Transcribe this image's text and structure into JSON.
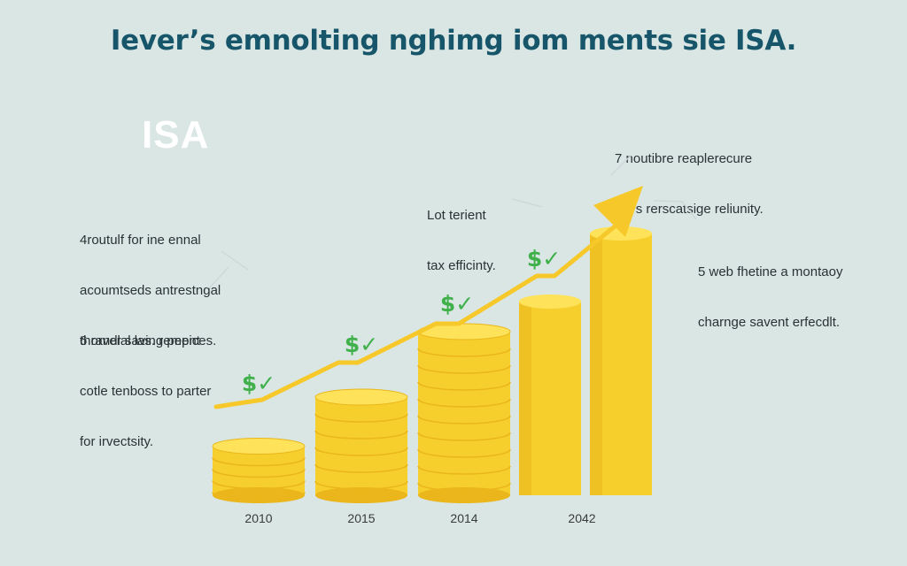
{
  "title": "Iever’s emnolting nghimg iom ments sie ISA.",
  "logo_text": "ISA",
  "annotations": [
    {
      "lines": [
        "4routulf for ine ennal",
        "acoumtseds antrestngal",
        "thorver saving pepices."
      ]
    },
    {
      "lines": [
        "6 randlal las. rement",
        "cotle tenboss to parter",
        "for irvectsity."
      ]
    },
    {
      "lines": [
        "Lot terient",
        "tax efficinty."
      ]
    },
    {
      "lines": [
        "7 noutibre reaplerecure",
        "the's rerscatsige reliunity."
      ]
    },
    {
      "lines": [
        "5 web fhetine a montaoy",
        "charnge savent erfecdlt."
      ]
    }
  ],
  "markers": [
    "$✓",
    "$✓",
    "$✓",
    "$✓"
  ],
  "colors": {
    "background": "#d9e6e4",
    "coin_light": "#fde25a",
    "coin_mid": "#f7cf2c",
    "coin_dark": "#eab61b",
    "arrow": "#f6c82a",
    "marker": "#3fb04a",
    "title": "#17566a"
  },
  "chart_data": {
    "type": "bar",
    "categories": [
      "2010",
      "2015",
      "2014",
      "2042"
    ],
    "values": [
      3,
      6,
      10,
      16
    ],
    "unit": "relative coin-stack height (no axis printed)",
    "trend": "rising arrow above the bars"
  }
}
